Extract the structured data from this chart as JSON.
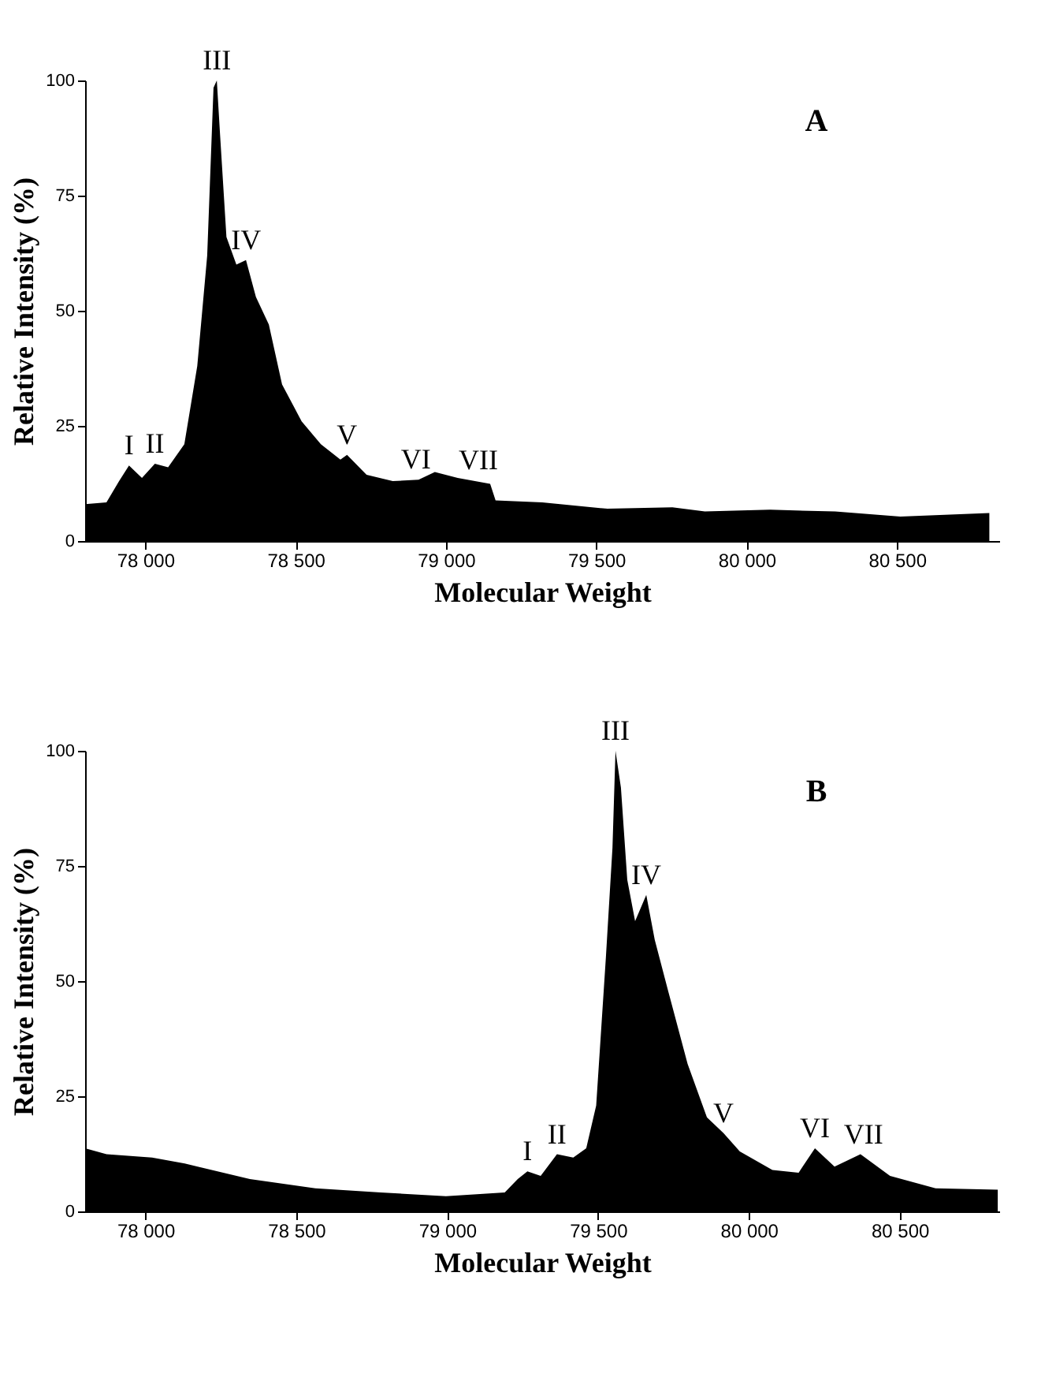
{
  "chart_data": [
    {
      "type": "area",
      "xlabel": "Molecular Weight",
      "ylabel": "Relative Intensity (%)",
      "annotations": [
        "A",
        {
          "text": "I",
          "x": 77946,
          "y": 16.4
        },
        {
          "text": "II",
          "x": 78032,
          "y": 16.8
        },
        {
          "text": "III",
          "x": 78238,
          "y": 100
        },
        {
          "text": "IV",
          "x": 78335,
          "y": 61
        },
        {
          "text": "V",
          "x": 78671,
          "y": 18.7
        },
        {
          "text": "VI",
          "x": 78900,
          "y": 13.3
        },
        {
          "text": "VII",
          "x": 79108,
          "y": 13.2
        }
      ],
      "x": [
        77800,
        77871,
        77913,
        77946,
        77989,
        78032,
        78076,
        78130,
        78173,
        78206,
        78227,
        78238,
        78249,
        78270,
        78303,
        78335,
        78368,
        78411,
        78455,
        78520,
        78584,
        78649,
        78671,
        78736,
        78823,
        78909,
        78963,
        79039,
        79147,
        79165,
        79320,
        79537,
        79753,
        79861,
        80078,
        80294,
        80511,
        80807
      ],
      "series": [
        {
          "color": "#000000",
          "values": [
            8,
            8.4,
            13,
            16.4,
            13.7,
            16.8,
            16,
            21,
            38,
            62,
            98.4,
            100,
            88,
            66,
            60,
            61,
            53,
            47,
            34,
            26,
            21,
            17.7,
            18.7,
            14.4,
            13,
            13.3,
            15,
            13.7,
            12.4,
            8.8,
            8.4,
            7,
            7.3,
            6.4,
            6.8,
            6.4,
            5.3,
            6.1
          ]
        }
      ],
      "xlim": [
        77800,
        80840
      ],
      "xticks": [
        {
          "value": 78000,
          "label": "78 000"
        },
        {
          "value": 78500,
          "label": "78 500"
        },
        {
          "value": 79000,
          "label": "79 000"
        },
        {
          "value": 79500,
          "label": "79 500"
        },
        {
          "value": 80000,
          "label": "80 000"
        },
        {
          "value": 80500,
          "label": "80 500"
        }
      ],
      "ylim": [
        0,
        100
      ],
      "yticks": [
        0,
        25,
        50,
        75,
        100
      ],
      "grid": false
    },
    {
      "type": "area",
      "xlabel": "Molecular Weight",
      "ylabel": "Relative Intensity (%)",
      "annotations": [
        "B",
        {
          "text": "I",
          "x": 79266,
          "y": 8.7
        },
        {
          "text": "II",
          "x": 79364,
          "y": 12.4
        },
        {
          "text": "III",
          "x": 79558,
          "y": 100
        },
        {
          "text": "IV",
          "x": 79660,
          "y": 68.7
        },
        {
          "text": "V",
          "x": 79916,
          "y": 17
        },
        {
          "text": "VI",
          "x": 80219,
          "y": 13.7
        },
        {
          "text": "VII",
          "x": 80380,
          "y": 12.4
        }
      ],
      "x": [
        77800,
        77871,
        78022,
        78130,
        78346,
        78563,
        78779,
        78996,
        79191,
        79234,
        79266,
        79310,
        79364,
        79418,
        79461,
        79494,
        79526,
        79548,
        79558,
        79576,
        79597,
        79623,
        79660,
        79688,
        79732,
        79797,
        79861,
        79916,
        79970,
        80078,
        80165,
        80219,
        80284,
        80370,
        80468,
        80619,
        80825
      ],
      "series": [
        {
          "color": "#000000",
          "values": [
            13.7,
            12.4,
            11.7,
            10.4,
            7,
            5,
            4.1,
            3.3,
            4.1,
            7,
            8.7,
            7.7,
            12.4,
            11.7,
            13.7,
            23,
            55,
            79,
            100,
            92,
            72,
            63,
            68.7,
            59,
            48,
            32,
            20.4,
            17,
            13,
            9,
            8.4,
            13.7,
            9.7,
            12.4,
            7.7,
            5,
            4.7
          ]
        }
      ],
      "xlim": [
        77800,
        80830
      ],
      "xticks": [
        {
          "value": 78000,
          "label": "78 000"
        },
        {
          "value": 78500,
          "label": "78 500"
        },
        {
          "value": 79000,
          "label": "79 000"
        },
        {
          "value": 79500,
          "label": "79 500"
        },
        {
          "value": 80000,
          "label": "80 000"
        },
        {
          "value": 80500,
          "label": "80 500"
        }
      ],
      "ylim": [
        0,
        100
      ],
      "yticks": [
        0,
        25,
        50,
        75,
        100
      ],
      "grid": false
    }
  ]
}
